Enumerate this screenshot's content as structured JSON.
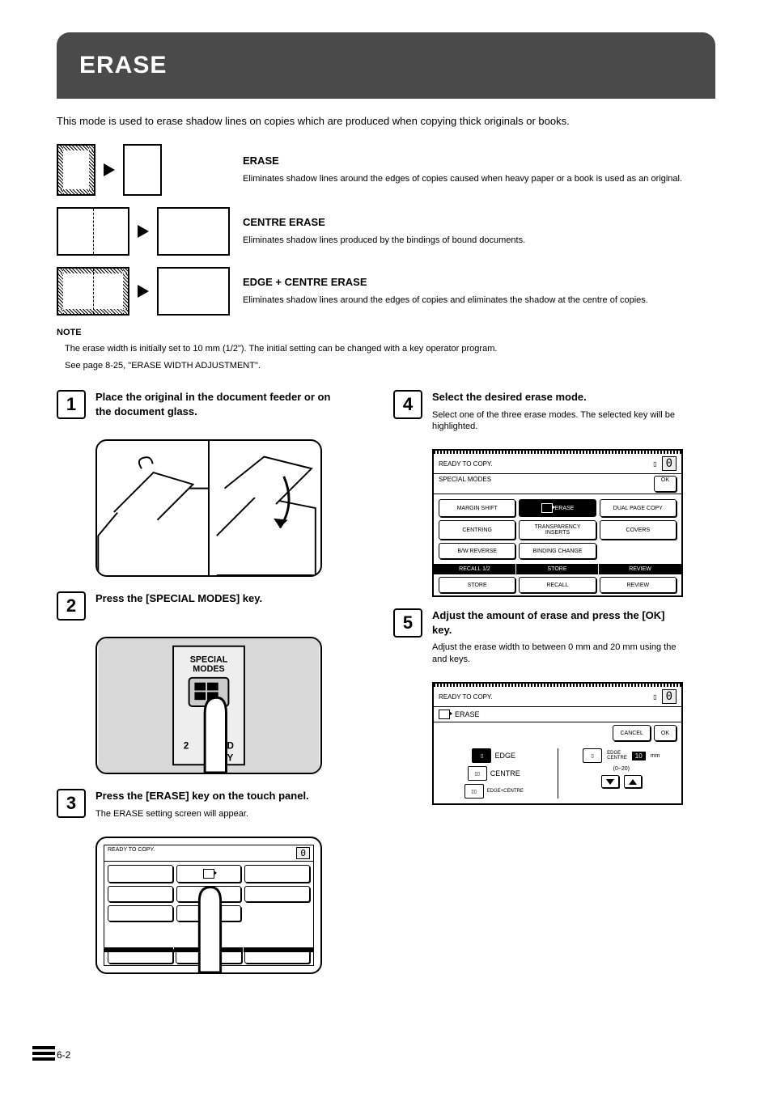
{
  "title": "ERASE",
  "intro": "This mode is used to erase shadow lines on copies which are produced when copying thick originals or books.",
  "modes": [
    {
      "label": "ERASE",
      "desc": "Eliminates shadow lines around the edges of copies caused when heavy paper or a book is used as an original.",
      "variant": "edge"
    },
    {
      "label": "CENTRE ERASE",
      "desc": "Eliminates shadow lines produced by the bindings of bound documents.",
      "variant": "centre"
    },
    {
      "label": "EDGE + CENTRE ERASE",
      "desc": "Eliminates shadow lines around the edges of copies and eliminates the shadow at the centre of copies.",
      "variant": "both"
    }
  ],
  "note_heading": "NOTE",
  "note_body": "The erase width is initially set to 10 mm (1/2\"). The initial setting can be changed with a key operator program.",
  "note_link": "See page 8-25, \"ERASE WIDTH ADJUSTMENT\".",
  "steps_left": [
    {
      "n": "1",
      "main": "Place the original in the document feeder or on the document glass."
    },
    {
      "n": "2",
      "main": "Press the [SPECIAL MODES] key."
    },
    {
      "n": "3",
      "main": "Press the [ERASE] key on the touch panel.",
      "sub": "The ERASE setting screen will appear."
    }
  ],
  "steps_right": [
    {
      "n": "4",
      "main": "Select the desired erase mode.",
      "sub": "Select one of the three erase modes. The selected key will be highlighted."
    },
    {
      "n": "5",
      "main": "Adjust the amount of erase and press the [OK] key.",
      "sub": "Adjust the erase width to between 0 mm and 20 mm using the     and     keys."
    }
  ],
  "screen4": {
    "header_left": "READY TO COPY.",
    "header_right_icon": "copies-icon",
    "count": "0",
    "sub": "SPECIAL MODES",
    "ok": "OK",
    "grid": [
      {
        "label": "MARGIN SHIFT"
      },
      {
        "label": "ERASE",
        "highlight": true,
        "icon": true
      },
      {
        "label": "DUAL PAGE COPY"
      },
      {
        "label": "CENTRING"
      },
      {
        "label": "TRANSPARENCY INSERTS"
      },
      {
        "label": "COVERS"
      },
      {
        "label": "B/W REVERSE"
      },
      {
        "label": "BINDING CHANGE"
      }
    ],
    "footer": [
      "RECALL 1/2",
      "STORE",
      "REVIEW"
    ],
    "footer_btns": [
      "STORE",
      "RECALL",
      "REVIEW"
    ]
  },
  "screen5": {
    "header_left": "READY TO COPY.",
    "count": "0",
    "title": "ERASE",
    "cancel": "CANCEL",
    "ok": "OK",
    "edge_label": "EDGE",
    "centre_label": "CENTRE",
    "both_label": "EDGE+CENTRE",
    "right_label_top": "EDGE",
    "right_label_bot": "CENTRE",
    "value": "10",
    "unit": "mm",
    "range": "(0~20)"
  },
  "illus2": {
    "label_top": "SPECIAL",
    "label_bot": "MODES",
    "below1": "2",
    "below2": "ED",
    "below3": "Y"
  },
  "page_num": "6-2",
  "colors": {
    "bar": "#4a4a4a",
    "text": "#000000",
    "bg": "#ffffff"
  }
}
